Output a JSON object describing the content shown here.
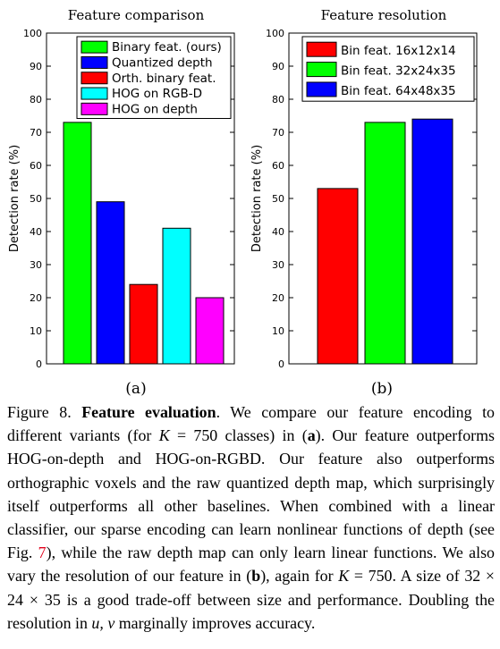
{
  "chart_data": [
    {
      "type": "bar",
      "title": "Feature comparison",
      "ylabel": "Detection rate (%)",
      "ylim": [
        0,
        100
      ],
      "yticks": [
        0,
        10,
        20,
        30,
        40,
        50,
        60,
        70,
        80,
        90,
        100
      ],
      "sublabel": "(a)",
      "legend_position": "top-right",
      "series": [
        {
          "name": "Binary feat. (ours)",
          "value": 73,
          "color": "#00ff00"
        },
        {
          "name": "Quantized depth",
          "value": 49,
          "color": "#0000ff"
        },
        {
          "name": "Orth. binary feat.",
          "value": 24,
          "color": "#ff0000"
        },
        {
          "name": "HOG on RGB-D",
          "value": 41,
          "color": "#00ffff"
        },
        {
          "name": "HOG on depth",
          "value": 20,
          "color": "#ff00ff"
        }
      ]
    },
    {
      "type": "bar",
      "title": "Feature resolution",
      "ylabel": "Detection rate (%)",
      "ylim": [
        0,
        100
      ],
      "yticks": [
        0,
        10,
        20,
        30,
        40,
        50,
        60,
        70,
        80,
        90,
        100
      ],
      "sublabel": "(b)",
      "legend_position": "top-right",
      "series": [
        {
          "name": "Bin feat. 16x12x14",
          "value": 53,
          "color": "#ff0000"
        },
        {
          "name": "Bin feat. 32x24x35",
          "value": 73,
          "color": "#00ff00"
        },
        {
          "name": "Bin feat. 64x48x35",
          "value": 74,
          "color": "#0000ff"
        }
      ]
    }
  ],
  "caption": {
    "figure_label": "Figure 8.",
    "heading": "Feature evaluation",
    "t1": ". We compare our feature encoding to different variants (for ",
    "k_var": "K",
    "t2": " = 750 classes) in (",
    "a_ref": "a",
    "t3": "). Our feature outperforms HOG-on-depth and HOG-on-RGBD. Our feature also outperforms orthographic voxels and the raw quantized depth map, which surprisingly itself outperforms all other baselines. When combined with a linear classifier, our sparse encoding can learn nonlinear functions of depth (see Fig. ",
    "fig_ref": "7",
    "t4": "), while the raw depth map can only learn linear functions. We also vary the resolution of our feature in (",
    "b_ref": "b",
    "t5": "), again for ",
    "k_var2": "K",
    "t6": " = 750. A size of 32 × 24 × 35 is a good trade-off between size and performance. Doubling the resolution in ",
    "uv": "u, v",
    "t7": " marginally improves accuracy."
  }
}
